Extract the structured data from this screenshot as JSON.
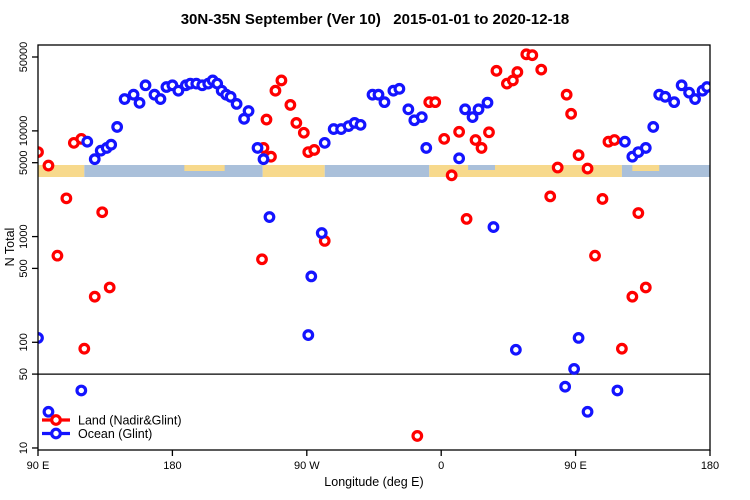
{
  "title": "30N-35N September (Ver 10)   2015-01-01 to 2020-12-18",
  "colors": {
    "land_series": "#FF0000",
    "ocean_series": "#1414FF",
    "band_land": "#F7D98C",
    "band_ocean": "#AAC0DA",
    "frame": "#000000",
    "reference_line": "#000000"
  },
  "legend": {
    "items": [
      {
        "label": "Land (Nadir&Glint)",
        "color": "#FF0000",
        "symbol": "line-with-open-circle"
      },
      {
        "label": "Ocean (Glint)",
        "color": "#1414FF",
        "symbol": "line-with-open-circle"
      }
    ]
  },
  "chart_data": {
    "type": "scatter",
    "title": "30N-35N September (Ver 10)   2015-01-01 to 2020-12-18",
    "xlabel": "Longitude (deg E)",
    "ylabel": "N Total",
    "x_axis": {
      "note": "longitude plotted eastward from 90E wrapping around the globe (deg axis position 90..540)",
      "range": [
        90,
        540
      ],
      "ticks": [
        90,
        180,
        270,
        360,
        450,
        540
      ],
      "tick_labels": [
        "90 E",
        "180",
        "90 W",
        "0",
        "90 E",
        "180"
      ]
    },
    "y_axis": {
      "scale": "log",
      "range": [
        10,
        60000
      ],
      "ticks": [
        10,
        50,
        100,
        500,
        1000,
        5000,
        10000,
        50000
      ],
      "tick_labels": [
        "10",
        "50",
        "100",
        "500",
        "1000",
        "5000",
        "10000",
        "50000"
      ]
    },
    "reference_line_y": 50,
    "grid": false,
    "legend_position": "bottom-left-inside",
    "land_ocean_band": {
      "center_value": 4200,
      "segments": [
        {
          "from": 90,
          "to": 121,
          "type": "land"
        },
        {
          "from": 121,
          "to": 240.5,
          "type": "ocean"
        },
        {
          "from": 240.5,
          "to": 282,
          "type": "land"
        },
        {
          "from": 282,
          "to": 352,
          "type": "ocean"
        },
        {
          "from": 352,
          "to": 481,
          "type": "land"
        },
        {
          "from": 481,
          "to": 540,
          "type": "ocean"
        }
      ],
      "islands_top_half": [
        {
          "from": 188,
          "to": 215,
          "type": "land"
        },
        {
          "from": 488,
          "to": 506,
          "type": "land"
        }
      ],
      "inland_sea_top_half": [
        {
          "from": 378,
          "to": 396,
          "type": "ocean"
        }
      ]
    },
    "series": [
      {
        "name": "Land (Nadir&Glint)",
        "color": "#FF0000",
        "marker": "open-circle",
        "points": [
          [
            90,
            6300
          ],
          [
            97,
            4700
          ],
          [
            103,
            660
          ],
          [
            109,
            2300
          ],
          [
            114,
            7700
          ],
          [
            119,
            8400
          ],
          [
            121,
            87
          ],
          [
            128,
            270
          ],
          [
            133,
            1700
          ],
          [
            138,
            330
          ],
          [
            240,
            610
          ],
          [
            241,
            6900
          ],
          [
            243,
            12800
          ],
          [
            246,
            5700
          ],
          [
            249,
            24000
          ],
          [
            253,
            30000
          ],
          [
            259,
            17600
          ],
          [
            263,
            11900
          ],
          [
            268,
            9600
          ],
          [
            271,
            6300
          ],
          [
            275,
            6600
          ],
          [
            282,
            910
          ],
          [
            344,
            13
          ],
          [
            352,
            18700
          ],
          [
            356,
            18700
          ],
          [
            362,
            8400
          ],
          [
            367,
            3800
          ],
          [
            372,
            9800
          ],
          [
            377,
            1470
          ],
          [
            383,
            8200
          ],
          [
            387,
            6900
          ],
          [
            392,
            9700
          ],
          [
            397,
            37000
          ],
          [
            404,
            28000
          ],
          [
            408,
            30000
          ],
          [
            411,
            36000
          ],
          [
            417,
            53000
          ],
          [
            421,
            52000
          ],
          [
            427,
            38000
          ],
          [
            433,
            2400
          ],
          [
            438,
            4500
          ],
          [
            444,
            22000
          ],
          [
            447,
            14500
          ],
          [
            452,
            5900
          ],
          [
            458,
            4400
          ],
          [
            463,
            660
          ],
          [
            468,
            2270
          ],
          [
            472,
            7900
          ],
          [
            476,
            8200
          ],
          [
            481,
            87
          ],
          [
            488,
            270
          ],
          [
            492,
            1670
          ],
          [
            497,
            330
          ]
        ]
      },
      {
        "name": "Ocean (Glint)",
        "color": "#1414FF",
        "marker": "open-circle",
        "points": [
          [
            90,
            110
          ],
          [
            97,
            22
          ],
          [
            119,
            35
          ],
          [
            123,
            7900
          ],
          [
            128,
            5400
          ],
          [
            132,
            6500
          ],
          [
            136,
            6900
          ],
          [
            139,
            7400
          ],
          [
            143,
            10900
          ],
          [
            148,
            20000
          ],
          [
            154,
            22000
          ],
          [
            158,
            18400
          ],
          [
            162,
            27000
          ],
          [
            168,
            22000
          ],
          [
            172,
            20000
          ],
          [
            176,
            26000
          ],
          [
            180,
            27000
          ],
          [
            184,
            24000
          ],
          [
            189,
            27000
          ],
          [
            192,
            28000
          ],
          [
            196,
            28000
          ],
          [
            200,
            27000
          ],
          [
            204,
            28000
          ],
          [
            207,
            30000
          ],
          [
            210,
            28000
          ],
          [
            213,
            24000
          ],
          [
            216,
            22000
          ],
          [
            219,
            21000
          ],
          [
            223,
            18000
          ],
          [
            228,
            13000
          ],
          [
            231,
            15400
          ],
          [
            237,
            6900
          ],
          [
            241,
            5400
          ],
          [
            245,
            1530
          ],
          [
            271,
            117
          ],
          [
            273,
            420
          ],
          [
            280,
            1080
          ],
          [
            282,
            7700
          ],
          [
            288,
            10400
          ],
          [
            293,
            10400
          ],
          [
            298,
            11100
          ],
          [
            302,
            11900
          ],
          [
            306,
            11400
          ],
          [
            314,
            22000
          ],
          [
            318,
            22000
          ],
          [
            322,
            18700
          ],
          [
            328,
            24000
          ],
          [
            332,
            25000
          ],
          [
            338,
            16000
          ],
          [
            342,
            12600
          ],
          [
            347,
            13500
          ],
          [
            350,
            6900
          ],
          [
            372,
            5500
          ],
          [
            376,
            16000
          ],
          [
            381,
            13500
          ],
          [
            385,
            16000
          ],
          [
            391,
            18500
          ],
          [
            395,
            1230
          ],
          [
            410,
            85
          ],
          [
            443,
            38
          ],
          [
            449,
            56
          ],
          [
            452,
            110
          ],
          [
            458,
            22
          ],
          [
            478,
            35
          ],
          [
            483,
            7900
          ],
          [
            488,
            5700
          ],
          [
            492,
            6300
          ],
          [
            497,
            6900
          ],
          [
            502,
            10900
          ],
          [
            506,
            22000
          ],
          [
            510,
            21000
          ],
          [
            516,
            18700
          ],
          [
            521,
            27000
          ],
          [
            526,
            23000
          ],
          [
            530,
            20000
          ],
          [
            535,
            24000
          ],
          [
            538,
            26000
          ]
        ]
      }
    ]
  }
}
